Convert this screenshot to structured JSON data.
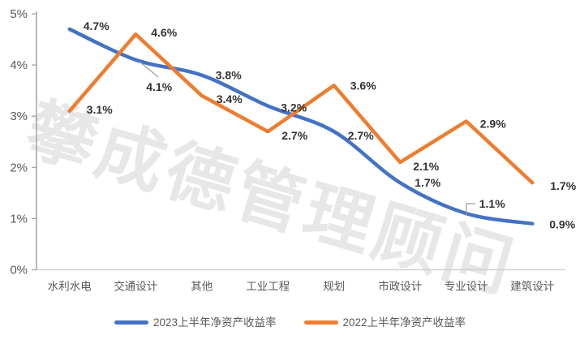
{
  "watermark": {
    "text": "攀成德管理顾问"
  },
  "chart_data": {
    "type": "line",
    "title": "",
    "categories": [
      "水利水电",
      "交通设计",
      "其他",
      "工业工程",
      "规划",
      "市政设计",
      "专业设计",
      "建筑设计"
    ],
    "series": [
      {
        "name": "2023上半年净资产收益率",
        "color": "#4472C4",
        "smooth": true,
        "values": [
          4.7,
          4.1,
          3.8,
          3.2,
          2.7,
          1.7,
          1.1,
          0.9
        ],
        "labels": [
          "4.7%",
          "4.1%",
          "3.8%",
          "3.2%",
          "2.7%",
          "1.7%",
          "1.1%",
          "0.9%"
        ],
        "label_offsets": [
          [
            17,
            -4
          ],
          [
            13,
            33
          ],
          [
            17,
            0
          ],
          [
            16,
            2
          ],
          [
            17,
            5
          ],
          [
            18,
            0
          ],
          [
            16,
            -12
          ],
          [
            21,
            1
          ]
        ]
      },
      {
        "name": "2022上半年净资产收益率",
        "color": "#ED7D31",
        "smooth": false,
        "values": [
          3.1,
          4.6,
          3.4,
          2.7,
          3.6,
          2.1,
          2.9,
          1.7
        ],
        "labels": [
          "3.1%",
          "4.6%",
          "3.4%",
          "2.7%",
          "3.6%",
          "2.1%",
          "2.9%",
          "1.7%"
        ],
        "label_offsets": [
          [
            21,
            -2
          ],
          [
            19,
            -2
          ],
          [
            18,
            4
          ],
          [
            17,
            5
          ],
          [
            20,
            0
          ],
          [
            16,
            5
          ],
          [
            17,
            3
          ],
          [
            22,
            4
          ]
        ]
      }
    ],
    "y_ticks": [
      "0%",
      "1%",
      "2%",
      "3%",
      "4%",
      "5%"
    ],
    "ylim": [
      0,
      5
    ],
    "xlabel": "",
    "ylabel": "",
    "grid": false,
    "legend_position": "bottom"
  },
  "colors": {
    "y_axis_line": "#a6a6a6",
    "x_axis_line": "#d0d0d0",
    "tick_label": "#595959",
    "data_label": "#333333",
    "leader_line": "#9d9d9d",
    "watermark": "#e7e7e7"
  }
}
